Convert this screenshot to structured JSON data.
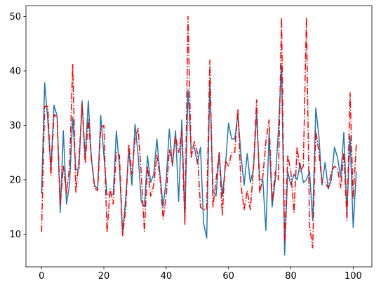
{
  "chart_data": {
    "type": "line",
    "title": "",
    "xlabel": "",
    "ylabel": "",
    "xlim": [
      -5,
      106
    ],
    "ylim": [
      4,
      52
    ],
    "xticks": [
      0,
      20,
      40,
      60,
      80,
      100
    ],
    "yticks": [
      10,
      20,
      30,
      40,
      50
    ],
    "xtick_labels": [
      "0",
      "20",
      "40",
      "60",
      "80",
      "100"
    ],
    "ytick_labels": [
      "10",
      "20",
      "30",
      "40",
      "50"
    ],
    "grid": false,
    "series": [
      {
        "color": "#1f77b4",
        "linestyle": "solid",
        "values": [
          17.5,
          37.8,
          31.0,
          22.0,
          33.7,
          31.7,
          14.0,
          29.0,
          15.5,
          19.2,
          31.5,
          21.8,
          22.0,
          34.5,
          24.0,
          34.5,
          23.8,
          19.0,
          18.3,
          31.8,
          24.5,
          17.3,
          17.2,
          17.3,
          29.0,
          22.5,
          10.0,
          16.5,
          25.5,
          19.0,
          30.2,
          24.5,
          16.0,
          15.0,
          24.4,
          19.5,
          21.0,
          27.5,
          21.0,
          15.0,
          20.0,
          29.3,
          22.5,
          29.0,
          16.0,
          31.0,
          13.0,
          36.5,
          26.0,
          26.0,
          23.0,
          26.0,
          12.0,
          9.3,
          38.0,
          18.0,
          17.0,
          25.0,
          17.0,
          22.5,
          30.4,
          27.5,
          27.5,
          32.0,
          24.5,
          19.0,
          24.8,
          19.5,
          22.0,
          32.0,
          20.0,
          20.0,
          10.7,
          28.5,
          15.0,
          20.0,
          29.0,
          41.0,
          6.2,
          21.5,
          19.0,
          21.0,
          20.0,
          23.0,
          19.5,
          20.0,
          21.5,
          12.5,
          33.2,
          28.0,
          19.0,
          23.2,
          18.3,
          20.0,
          26.0,
          24.0,
          20.5,
          28.7,
          14.0,
          28.0,
          11.2,
          21.5
        ]
      },
      {
        "color": "#ff0000",
        "linestyle": "dashdot",
        "values": [
          10.4,
          33.5,
          33.5,
          20.7,
          32.0,
          31.5,
          15.3,
          22.5,
          17.5,
          22.5,
          41.2,
          17.7,
          23.5,
          34.0,
          23.0,
          31.0,
          24.0,
          18.5,
          18.0,
          29.5,
          30.0,
          10.3,
          18.3,
          15.5,
          25.0,
          24.5,
          9.7,
          14.5,
          26.5,
          21.0,
          27.5,
          29.5,
          21.0,
          10.5,
          22.5,
          17.0,
          19.0,
          24.5,
          20.5,
          12.8,
          17.0,
          25.5,
          23.0,
          28.0,
          25.0,
          29.0,
          11.7,
          50.0,
          24.0,
          27.0,
          25.0,
          15.0,
          14.5,
          14.5,
          42.0,
          15.0,
          20.0,
          25.0,
          13.5,
          23.5,
          22.5,
          25.0,
          25.0,
          33.0,
          19.0,
          14.5,
          18.0,
          14.5,
          22.0,
          34.7,
          17.5,
          20.5,
          27.0,
          31.0,
          16.0,
          21.5,
          20.0,
          49.8,
          8.5,
          24.5,
          21.5,
          14.0,
          26.0,
          21.5,
          22.5,
          49.8,
          11.5,
          7.5,
          29.0,
          25.0,
          19.5,
          19.5,
          18.5,
          21.5,
          22.5,
          22.0,
          18.5,
          25.0,
          12.5,
          36.0,
          16.5,
          26.5
        ]
      }
    ]
  }
}
